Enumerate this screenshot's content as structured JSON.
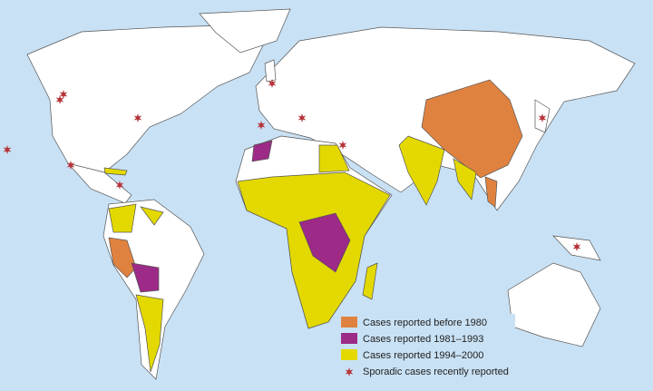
{
  "legend": {
    "items": [
      {
        "label": "Cases reported before 1980",
        "color": "#e0823f"
      },
      {
        "label": "Cases reported 1981–1993",
        "color": "#9c2a86"
      },
      {
        "label": "Cases reported 1994–2000",
        "color": "#e3d900"
      },
      {
        "label": "Sporadic cases recently reported",
        "color": "#b5333a"
      }
    ]
  }
}
